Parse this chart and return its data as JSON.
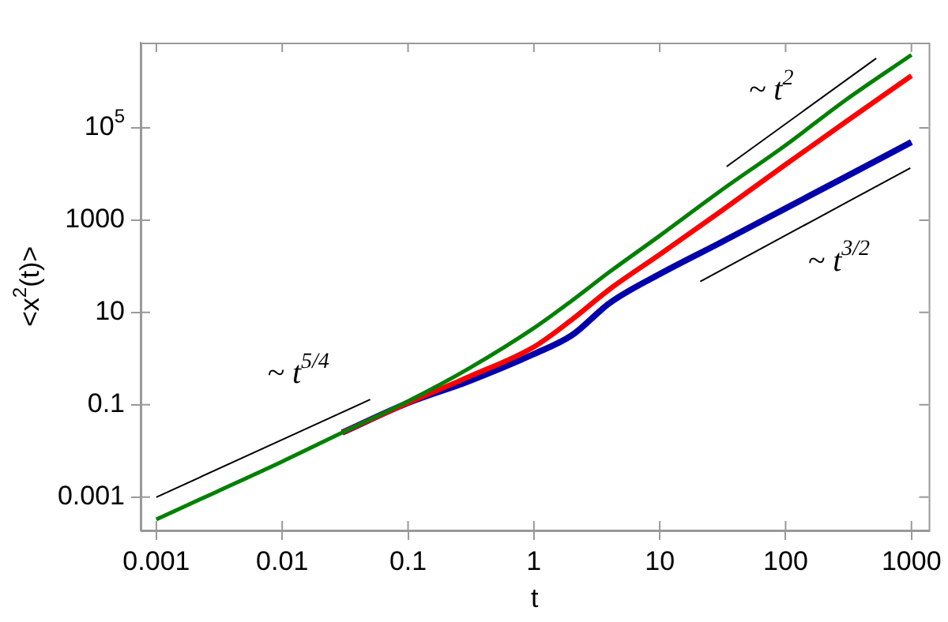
{
  "chart_data": {
    "type": "line",
    "xlabel": "t",
    "ylabel": "<x$^{2}$(t)>",
    "log": "xy",
    "grid": false,
    "legend": false,
    "marker": "none",
    "x": [
      0.001,
      0.003,
      0.01,
      0.03,
      0.1,
      0.3,
      1,
      2,
      4,
      10,
      30,
      100,
      300,
      1000
    ],
    "xlim": [
      0.00075,
      1370
    ],
    "ylim": [
      0.00019,
      7000000
    ],
    "xticks": [
      0.001,
      0.01,
      0.1,
      1,
      10,
      100,
      1000
    ],
    "yticks": [
      0.001,
      0.1,
      10,
      1000,
      {
        "value": 100000,
        "label": "10$^{5}$"
      }
    ],
    "series": [
      {
        "color": "#0000aa",
        "values": [
          null,
          null,
          null,
          0.025,
          0.11,
          0.32,
          1.26,
          3.2,
          16,
          68,
          320,
          1800,
          8700,
          49000
        ]
      },
      {
        "color": "#ff0000",
        "values": [
          null,
          null,
          null,
          0.025,
          0.11,
          0.4,
          1.8,
          7,
          32,
          180,
          1500,
          16000,
          135000,
          1350000
        ]
      },
      {
        "color": "#008000",
        "values": [
          0.00033,
          0.0013,
          0.0059,
          0.025,
          0.12,
          0.6,
          4.6,
          18,
          76,
          460,
          4200,
          42000,
          400000,
          3800000
        ]
      },
      {
        "type": "line",
        "color": "#000000",
        "x": [
          0.001,
          0.05
        ],
        "values": [
          0.001,
          0.13
        ]
      },
      {
        "type": "line",
        "color": "#000000",
        "x": [
          34,
          525
        ],
        "values": [
          14500,
          3200000
        ]
      },
      {
        "type": "line",
        "color": "#000000",
        "x": [
          21,
          980
        ],
        "values": [
          47,
          13500
        ]
      }
    ],
    "annotations": [
      "~ t$^{5/4}$",
      "~ t$^{2}$",
      "~ t$^{3/2}$"
    ]
  }
}
